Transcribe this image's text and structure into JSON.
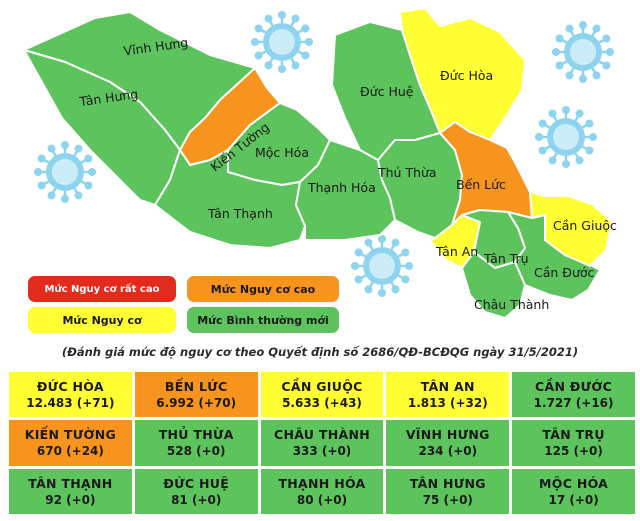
{
  "colors": {
    "very_high": "#e32b1c",
    "high": "#f7941d",
    "medium": "#ffff33",
    "normal": "#5dc35d",
    "district_border": "#ffffff",
    "virus": "#8fd4ef"
  },
  "map": {
    "districts": [
      {
        "id": "vinh-hung",
        "label": "Vĩnh Hưng",
        "level": "normal"
      },
      {
        "id": "tan-hung",
        "label": "Tân Hưng",
        "level": "normal"
      },
      {
        "id": "kien-tuong",
        "label": "Kiến Tường",
        "level": "high"
      },
      {
        "id": "moc-hoa",
        "label": "Mộc Hóa",
        "level": "normal"
      },
      {
        "id": "tan-thanh",
        "label": "Tân Thạnh",
        "level": "normal"
      },
      {
        "id": "thanh-hoa",
        "label": "Thạnh Hóa",
        "level": "normal"
      },
      {
        "id": "duc-hue",
        "label": "Đức Huệ",
        "level": "normal"
      },
      {
        "id": "duc-hoa",
        "label": "Đức Hòa",
        "level": "medium"
      },
      {
        "id": "thu-thua",
        "label": "Thủ Thừa",
        "level": "normal"
      },
      {
        "id": "ben-luc",
        "label": "Bến Lức",
        "level": "high"
      },
      {
        "id": "tan-an",
        "label": "Tân An",
        "level": "medium"
      },
      {
        "id": "tan-tru",
        "label": "Tân Trụ",
        "level": "normal"
      },
      {
        "id": "chau-thanh",
        "label": "Châu Thành",
        "level": "normal"
      },
      {
        "id": "can-duoc",
        "label": "Cần Đước",
        "level": "normal"
      },
      {
        "id": "can-giuoc",
        "label": "Cần Giuộc",
        "level": "medium"
      }
    ]
  },
  "legend": [
    {
      "label": "Mức Nguy cơ rất cao",
      "level": "very_high"
    },
    {
      "label": "Mức Nguy cơ cao",
      "level": "high"
    },
    {
      "label": "Mức Nguy cơ",
      "level": "medium"
    },
    {
      "label": "Mức Bình thường mới",
      "level": "normal"
    }
  ],
  "caption": "(Đánh giá mức độ nguy cơ theo Quyết định số 2686/QĐ-BCĐQG ngày 31/5/2021)",
  "table": [
    {
      "name": "ĐỨC HÒA",
      "value": "12.483 (+71)",
      "level": "medium"
    },
    {
      "name": "BẾN LỨC",
      "value": "6.992 (+70)",
      "level": "high"
    },
    {
      "name": "CẦN GIUỘC",
      "value": "5.633 (+43)",
      "level": "medium"
    },
    {
      "name": "TÂN AN",
      "value": "1.813 (+32)",
      "level": "medium"
    },
    {
      "name": "CẦN ĐƯỚC",
      "value": "1.727 (+16)",
      "level": "normal"
    },
    {
      "name": "KIẾN TƯỜNG",
      "value": "670 (+24)",
      "level": "high"
    },
    {
      "name": "THỦ THỪA",
      "value": "528 (+0)",
      "level": "normal"
    },
    {
      "name": "CHÂU THÀNH",
      "value": "333 (+0)",
      "level": "normal"
    },
    {
      "name": "VĨNH HƯNG",
      "value": "234 (+0)",
      "level": "normal"
    },
    {
      "name": "TÂN TRỤ",
      "value": "125 (+0)",
      "level": "normal"
    },
    {
      "name": "TÂN THẠNH",
      "value": "92 (+0)",
      "level": "normal"
    },
    {
      "name": "ĐỨC HUỆ",
      "value": "81 (+0)",
      "level": "normal"
    },
    {
      "name": "THẠNH HÓA",
      "value": "80 (+0)",
      "level": "normal"
    },
    {
      "name": "TÂN HƯNG",
      "value": "75 (+0)",
      "level": "normal"
    },
    {
      "name": "MỘC HÓA",
      "value": "17 (+0)",
      "level": "normal"
    }
  ]
}
